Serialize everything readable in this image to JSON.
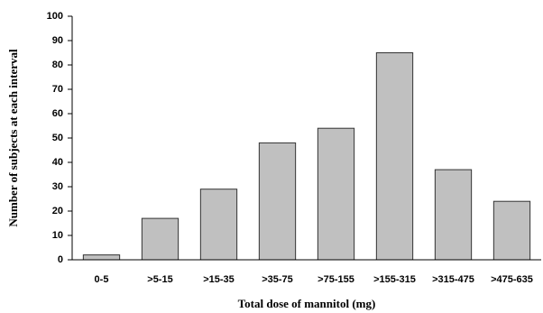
{
  "chart_data": {
    "type": "bar",
    "x_label": "Total dose of mannitol (mg)",
    "y_label": "Number of subjects at each interval",
    "categories": [
      "0-5",
      ">5-15",
      ">15-35",
      ">35-75",
      ">75-155",
      ">155-315",
      ">315-475",
      ">475-635"
    ],
    "values": [
      2,
      17,
      29,
      48,
      54,
      85,
      37,
      24
    ],
    "color": "#c0c0c0",
    "ylim": [
      0,
      100
    ],
    "yticks": [
      0,
      10,
      20,
      30,
      40,
      50,
      60,
      70,
      80,
      90,
      100
    ],
    "grid": false
  }
}
